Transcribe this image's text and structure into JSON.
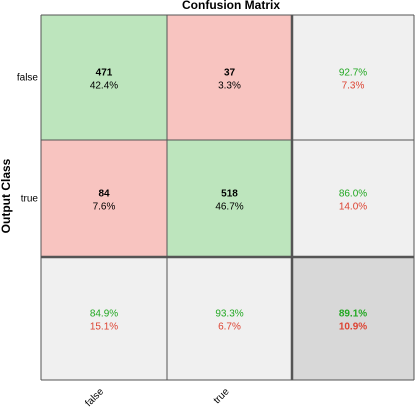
{
  "chart_data": {
    "type": "heatmap",
    "title": "Confusion Matrix",
    "xlabel": "",
    "ylabel": "Output Class",
    "row_labels": [
      "false",
      "true"
    ],
    "col_labels": [
      "false",
      "true"
    ],
    "cells": [
      [
        {
          "count": "471",
          "percent": "42.4%"
        },
        {
          "count": "37",
          "percent": "3.3%"
        }
      ],
      [
        {
          "count": "84",
          "percent": "7.6%"
        },
        {
          "count": "518",
          "percent": "46.7%"
        }
      ]
    ],
    "row_summary": [
      {
        "correct": "92.7%",
        "incorrect": "7.3%"
      },
      {
        "correct": "86.0%",
        "incorrect": "14.0%"
      }
    ],
    "col_summary": [
      {
        "correct": "84.9%",
        "incorrect": "15.1%"
      },
      {
        "correct": "93.3%",
        "incorrect": "6.7%"
      }
    ],
    "overall": {
      "correct": "89.1%",
      "incorrect": "10.9%"
    },
    "colors": {
      "correct_cell": "#bde5bd",
      "incorrect_cell": "#f8c4c0",
      "summary_cell": "#f0f0f0",
      "overall_cell": "#d8d8d8",
      "green_text": "#22a822",
      "red_text": "#dd4433",
      "grid_line": "#555555"
    }
  }
}
